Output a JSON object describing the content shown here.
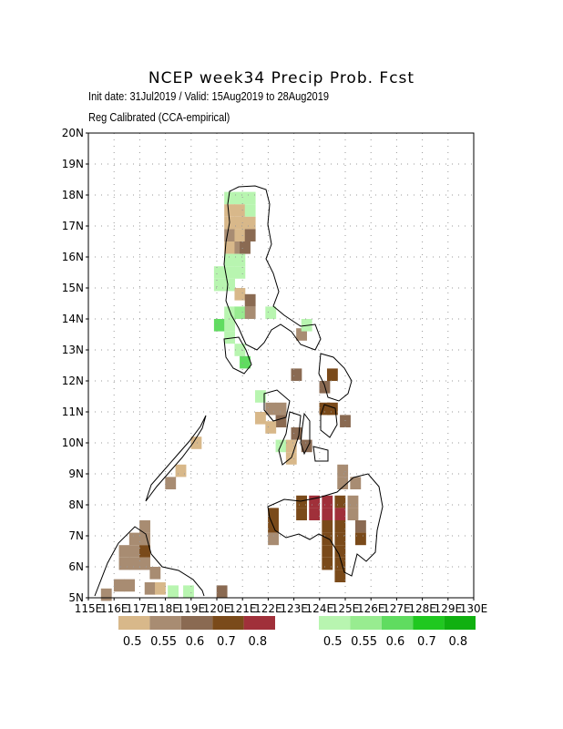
{
  "title": "NCEP week34 Precip Prob. Fcst",
  "subtitle_line1": "Init date: 31Jul2019 / Valid: 15Aug2019 to 28Aug2019",
  "subtitle_line2": "Reg Calibrated (CCA-empirical)",
  "colors": {
    "dry": [
      "#d8b88a",
      "#a88c72",
      "#8a6a52",
      "#7a4a1a",
      "#a0303a"
    ],
    "wet": [
      "#b8f5b0",
      "#98ec90",
      "#60dc60",
      "#20c820",
      "#10b010"
    ]
  },
  "chart_data": {
    "type": "heatmap",
    "x_range": [
      115,
      130
    ],
    "y_range": [
      5,
      20
    ],
    "lon_ticks": [
      "115E",
      "116E",
      "117E",
      "118E",
      "119E",
      "120E",
      "121E",
      "122E",
      "123E",
      "124E",
      "125E",
      "126E",
      "127E",
      "128E",
      "129E",
      "130E"
    ],
    "lat_ticks": [
      "5N",
      "6N",
      "7N",
      "8N",
      "9N",
      "10N",
      "11N",
      "12N",
      "13N",
      "14N",
      "15N",
      "16N",
      "17N",
      "18N",
      "19N",
      "20N"
    ],
    "legend_dry_labels": [
      "0.5",
      "0.55",
      "0.6",
      "0.7",
      "0.8"
    ],
    "legend_wet_labels": [
      "0.5",
      "0.55",
      "0.6",
      "0.7",
      "0.8"
    ],
    "cells": [
      [
        120.5,
        17.9,
        "W",
        0
      ],
      [
        120.9,
        17.9,
        "W",
        0
      ],
      [
        121.3,
        17.9,
        "W",
        0
      ],
      [
        120.5,
        17.5,
        "D",
        0
      ],
      [
        120.9,
        17.5,
        "D",
        0
      ],
      [
        121.3,
        17.5,
        "W",
        0
      ],
      [
        120.5,
        17.1,
        "D",
        0
      ],
      [
        120.9,
        17.1,
        "D",
        0
      ],
      [
        121.3,
        17.1,
        "D",
        0
      ],
      [
        120.5,
        16.7,
        "D",
        1
      ],
      [
        120.9,
        16.7,
        "D",
        0
      ],
      [
        121.3,
        16.7,
        "D",
        2
      ],
      [
        120.5,
        16.3,
        "D",
        0
      ],
      [
        120.9,
        16.3,
        "D",
        1
      ],
      [
        121.1,
        16.3,
        "D",
        2
      ],
      [
        120.5,
        15.9,
        "W",
        0
      ],
      [
        120.9,
        15.9,
        "W",
        0
      ],
      [
        120.1,
        15.5,
        "W",
        0
      ],
      [
        120.5,
        15.5,
        "W",
        0
      ],
      [
        120.9,
        15.5,
        "W",
        0
      ],
      [
        120.1,
        15.1,
        "W",
        0
      ],
      [
        120.5,
        15.1,
        "W",
        0
      ],
      [
        120.9,
        14.8,
        "D",
        0
      ],
      [
        121.3,
        14.6,
        "D",
        2
      ],
      [
        120.5,
        14.2,
        "W",
        0
      ],
      [
        120.9,
        14.2,
        "W",
        1
      ],
      [
        121.3,
        14.2,
        "D",
        1
      ],
      [
        122.1,
        14.2,
        "W",
        0
      ],
      [
        120.1,
        13.8,
        "W",
        2
      ],
      [
        120.5,
        13.8,
        "W",
        0
      ],
      [
        123.3,
        13.5,
        "D",
        1
      ],
      [
        123.5,
        13.8,
        "W",
        0
      ],
      [
        120.5,
        13.4,
        "W",
        0
      ],
      [
        120.9,
        13.0,
        "W",
        0
      ],
      [
        121.1,
        12.6,
        "W",
        2
      ],
      [
        123.1,
        12.2,
        "D",
        2
      ],
      [
        124.5,
        12.2,
        "D",
        3
      ],
      [
        124.2,
        11.8,
        "D",
        2
      ],
      [
        121.7,
        11.5,
        "W",
        0
      ],
      [
        122.1,
        11.1,
        "D",
        1
      ],
      [
        122.5,
        11.1,
        "D",
        1
      ],
      [
        124.2,
        11.1,
        "D",
        3
      ],
      [
        124.5,
        11.1,
        "D",
        3
      ],
      [
        121.7,
        10.8,
        "D",
        0
      ],
      [
        122.5,
        10.7,
        "D",
        2
      ],
      [
        125.0,
        10.7,
        "D",
        2
      ],
      [
        123.1,
        10.3,
        "D",
        2
      ],
      [
        122.1,
        10.5,
        "D",
        0
      ],
      [
        122.5,
        9.9,
        "W",
        0
      ],
      [
        122.9,
        9.9,
        "D",
        0
      ],
      [
        123.5,
        9.9,
        "D",
        2
      ],
      [
        122.9,
        9.5,
        "D",
        0
      ],
      [
        124.9,
        9.1,
        "D",
        1
      ],
      [
        124.9,
        8.7,
        "D",
        1
      ],
      [
        125.4,
        8.7,
        "D",
        1
      ],
      [
        123.3,
        8.1,
        "D",
        3
      ],
      [
        123.8,
        8.1,
        "D",
        4
      ],
      [
        124.3,
        8.1,
        "D",
        4
      ],
      [
        124.8,
        8.1,
        "D",
        3
      ],
      [
        125.3,
        8.1,
        "D",
        1
      ],
      [
        122.2,
        7.7,
        "D",
        3
      ],
      [
        123.3,
        7.7,
        "D",
        3
      ],
      [
        123.8,
        7.7,
        "D",
        4
      ],
      [
        124.3,
        7.7,
        "D",
        4
      ],
      [
        124.8,
        7.7,
        "D",
        4
      ],
      [
        125.3,
        7.7,
        "D",
        1
      ],
      [
        122.2,
        7.3,
        "D",
        3
      ],
      [
        124.3,
        7.3,
        "D",
        3
      ],
      [
        124.8,
        7.3,
        "D",
        3
      ],
      [
        125.6,
        7.3,
        "D",
        2
      ],
      [
        122.2,
        6.9,
        "D",
        1
      ],
      [
        124.3,
        6.9,
        "D",
        3
      ],
      [
        124.8,
        6.9,
        "D",
        3
      ],
      [
        125.6,
        6.9,
        "D",
        3
      ],
      [
        124.3,
        6.5,
        "D",
        3
      ],
      [
        124.8,
        6.5,
        "D",
        3
      ],
      [
        124.3,
        6.1,
        "D",
        3
      ],
      [
        124.8,
        6.1,
        "D",
        3
      ],
      [
        124.8,
        5.7,
        "D",
        3
      ],
      [
        119.2,
        10.0,
        "D",
        0
      ],
      [
        118.6,
        9.1,
        "D",
        0
      ],
      [
        118.2,
        8.7,
        "D",
        1
      ],
      [
        117.2,
        7.3,
        "D",
        1
      ],
      [
        116.8,
        6.9,
        "D",
        1
      ],
      [
        117.2,
        6.9,
        "D",
        1
      ],
      [
        116.4,
        6.5,
        "D",
        1
      ],
      [
        116.8,
        6.5,
        "D",
        1
      ],
      [
        117.2,
        6.5,
        "D",
        3
      ],
      [
        116.4,
        6.1,
        "D",
        1
      ],
      [
        116.8,
        6.1,
        "D",
        1
      ],
      [
        117.2,
        6.1,
        "D",
        1
      ],
      [
        117.6,
        5.8,
        "D",
        1
      ],
      [
        115.7,
        5.1,
        "D",
        1
      ],
      [
        116.2,
        5.4,
        "D",
        1
      ],
      [
        116.6,
        5.4,
        "D",
        1
      ],
      [
        117.4,
        5.3,
        "D",
        1
      ],
      [
        117.8,
        5.3,
        "D",
        0
      ],
      [
        118.3,
        5.2,
        "W",
        0
      ],
      [
        118.9,
        5.2,
        "W",
        0
      ],
      [
        120.2,
        5.2,
        "D",
        2
      ]
    ]
  }
}
